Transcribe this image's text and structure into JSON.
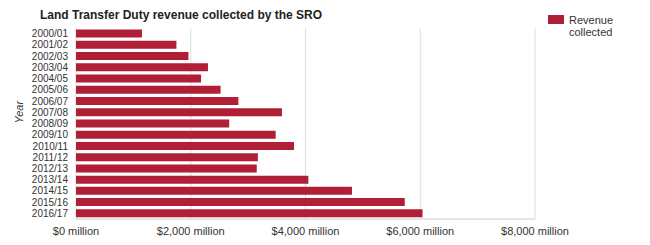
{
  "chart_data": {
    "type": "bar",
    "title": "Land Transfer Duty revenue collected by the SRO",
    "y_label": "Year",
    "orientation": "horizontal",
    "categories": [
      "2000/01",
      "2001/02",
      "2002/03",
      "2003/04",
      "2004/05",
      "2005/06",
      "2006/07",
      "2007/08",
      "2008/09",
      "2009/10",
      "2010/11",
      "2011/12",
      "2012/13",
      "2013/14",
      "2014/15",
      "2015/16",
      "2016/17"
    ],
    "series": [
      {
        "name": "Revenue collected",
        "color": "#b01f35",
        "values": [
          1150,
          1750,
          1960,
          2300,
          2180,
          2520,
          2830,
          3590,
          2670,
          3480,
          3800,
          3170,
          3150,
          4050,
          4810,
          5730,
          6040
        ]
      }
    ],
    "xlim": [
      0,
      8000
    ],
    "xticks": [
      {
        "value": 0,
        "label": "$0 million"
      },
      {
        "value": 2000,
        "label": "$2,000 million"
      },
      {
        "value": 4000,
        "label": "$4,000 million"
      },
      {
        "value": 6000,
        "label": "$6,000 million"
      },
      {
        "value": 8000,
        "label": "$8,000 million"
      }
    ],
    "grid": true,
    "legend": "upper right"
  }
}
